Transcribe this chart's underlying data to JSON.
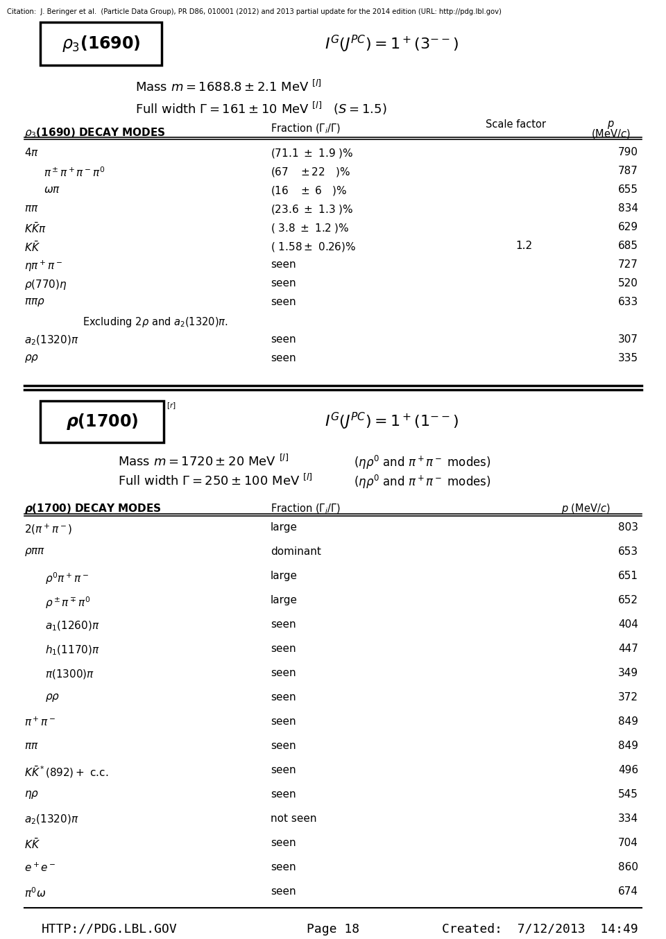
{
  "citation": "Citation:  J. Beringer et al.  (Particle Data Group), PR D86, 010001 (2012) and 2013 partial update for the 2014 edition (URL: http://pdg.lbl.gov)",
  "footer_left": "HTTP://PDG.LBL.GOV",
  "footer_mid": "Page 18",
  "footer_right": "Created:  7/12/2013  14:49"
}
